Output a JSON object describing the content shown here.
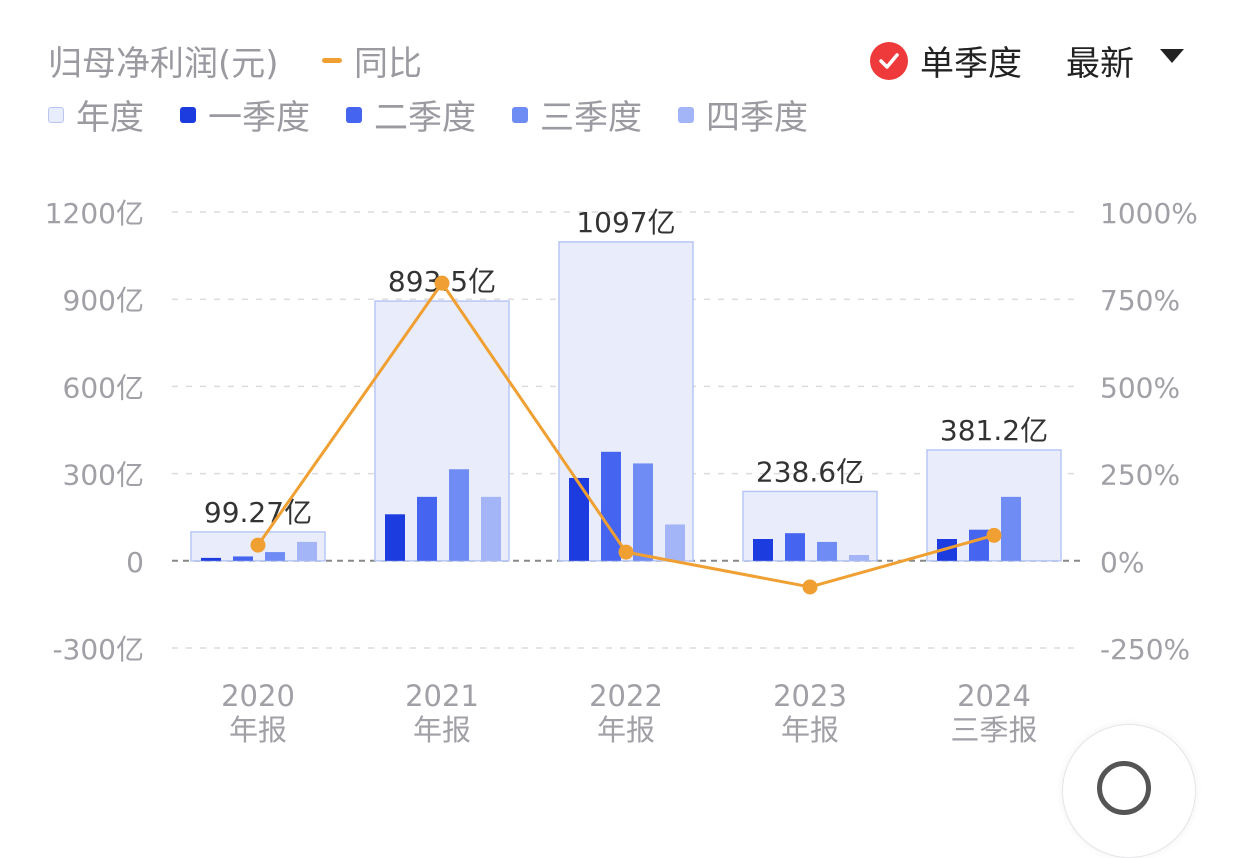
{
  "header": {
    "title": "归母净利润(元)",
    "yoy_legend": "同比",
    "single_quarter_label": "单季度",
    "period_select_label": "最新"
  },
  "legend": [
    {
      "label": "年度",
      "color": "#e9edfb"
    },
    {
      "label": "一季度",
      "color": "#1c3ce0"
    },
    {
      "label": "二季度",
      "color": "#4564ef"
    },
    {
      "label": "三季度",
      "color": "#6f8cf4"
    },
    {
      "label": "四季度",
      "color": "#a3b5f7"
    }
  ],
  "colors": {
    "annual_fill": "#e9edfb",
    "annual_border": "#b8c6f5",
    "yoy_line": "#f0a032",
    "grid": "#dcdce0",
    "zero_line": "#888888",
    "axis_text": "#a0a0a6",
    "value_label": "#333333",
    "check": "#ee3a3a"
  },
  "chart_data": {
    "type": "bar",
    "categories": [
      {
        "year": "2020",
        "period": "年报"
      },
      {
        "year": "2021",
        "period": "年报"
      },
      {
        "year": "2022",
        "period": "年报"
      },
      {
        "year": "2023",
        "period": "年报"
      },
      {
        "year": "2024",
        "period": "三季报"
      }
    ],
    "annual": {
      "values": [
        99.27,
        893.5,
        1097,
        238.6,
        381.2
      ],
      "labels": [
        "99.27亿",
        "893.5亿",
        "1097亿",
        "238.6亿",
        "381.2亿"
      ]
    },
    "series": [
      {
        "name": "一季度",
        "values": [
          10,
          160,
          285,
          75,
          75
        ]
      },
      {
        "name": "二季度",
        "values": [
          15,
          220,
          375,
          95,
          107
        ]
      },
      {
        "name": "三季度",
        "values": [
          30,
          315,
          335,
          65,
          220
        ]
      },
      {
        "name": "四季度",
        "values": [
          65,
          220,
          125,
          20,
          null
        ]
      }
    ],
    "yoy": {
      "name": "同比",
      "values": [
        45,
        796,
        25,
        -75,
        73
      ]
    },
    "left_axis": {
      "ticks": [
        1200,
        900,
        600,
        300,
        0,
        -300
      ],
      "labels": [
        "1200亿",
        "900亿",
        "600亿",
        "300亿",
        "0",
        "-300亿"
      ],
      "ylim": [
        -300,
        1200
      ]
    },
    "right_axis": {
      "ticks": [
        1000,
        750,
        500,
        250,
        0,
        -250
      ],
      "labels": [
        "1000%",
        "750%",
        "500%",
        "250%",
        "0%",
        "-250%"
      ],
      "ylim": [
        -250,
        1000
      ]
    },
    "grid": true
  }
}
